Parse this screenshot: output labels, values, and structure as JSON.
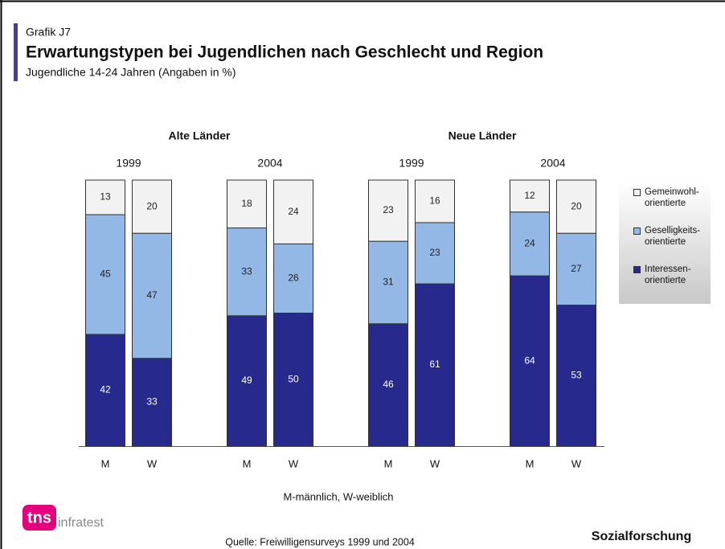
{
  "chart_data": {
    "type": "stacked_bar",
    "kicker": "Grafik J7",
    "title": "Erwartungstypen bei Jugendlichen nach Geschlecht und Region",
    "subtitle": "Jugendliche 14-24 Jahren (Angaben in %)",
    "regions": [
      "Alte Länder",
      "Neue Länder"
    ],
    "years": [
      "1999",
      "2004",
      "1999",
      "2004"
    ],
    "categories": [
      "M",
      "W",
      "M",
      "W",
      "M",
      "W",
      "M",
      "W"
    ],
    "series": [
      {
        "name": "Interessen-\norientierte",
        "color": "#272a8c",
        "label_color": "#ffffff",
        "values": [
          42,
          33,
          49,
          50,
          46,
          61,
          64,
          53
        ]
      },
      {
        "name": "Geselligkeits-\norientierte",
        "color": "#94b8e6",
        "label_color": "#222222",
        "values": [
          45,
          47,
          33,
          26,
          31,
          23,
          24,
          27
        ]
      },
      {
        "name": "Gemeinwohl-\norientierte",
        "color": "#f2f2f2",
        "label_color": "#222222",
        "values": [
          13,
          20,
          18,
          24,
          23,
          16,
          12,
          20
        ]
      }
    ],
    "note": "M-männlich, W-weiblich",
    "source": "Quelle: Freiwilligensurveys 1999 und 2004",
    "brand": "Sozialforschung",
    "logo": {
      "mark": "tns",
      "text": "infratest"
    }
  }
}
